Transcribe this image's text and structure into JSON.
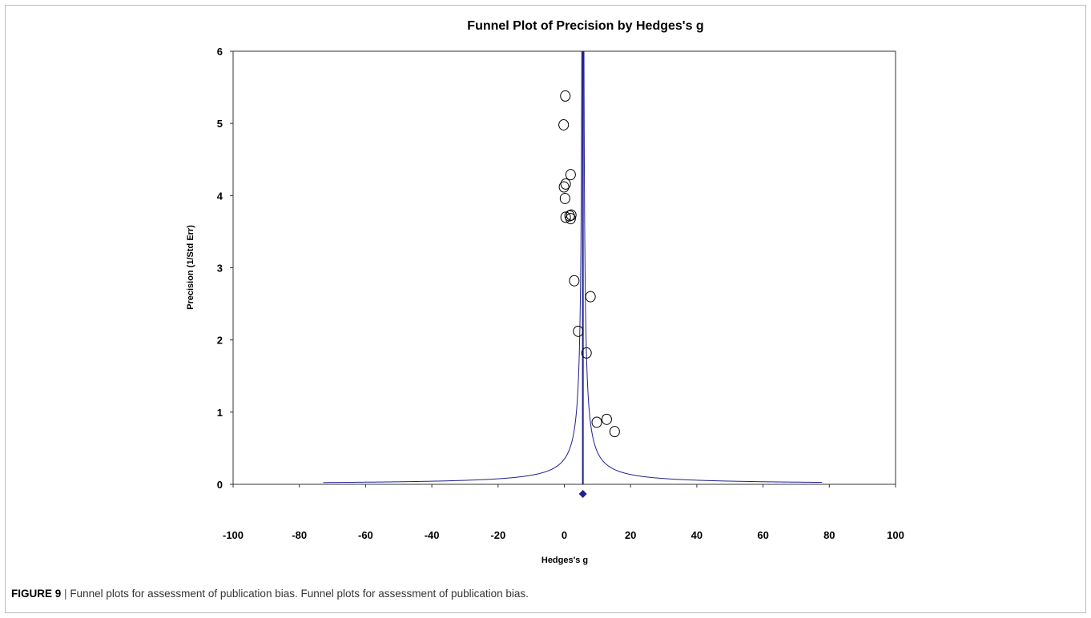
{
  "chart_data": {
    "type": "scatter",
    "title": "Funnel Plot of Precision by Hedges's g",
    "xlabel": "Hedges's g",
    "ylabel": "Precision (1/Std Err)",
    "xlim": [
      -100,
      100
    ],
    "ylim": [
      0,
      6
    ],
    "x_ticks": [
      "-100",
      "-80",
      "-60",
      "-40",
      "-20",
      "0",
      "20",
      "40",
      "60",
      "80",
      "100"
    ],
    "y_ticks": [
      "0",
      "1",
      "2",
      "3",
      "4",
      "5",
      "6"
    ],
    "grid": false,
    "legend": "none",
    "pooled_effect": 5.6,
    "funnel_line": {
      "center": 5.6,
      "half_width_factor": 1.96
    },
    "points": [
      {
        "x": 0.3,
        "y": 5.38
      },
      {
        "x": -0.2,
        "y": 4.98
      },
      {
        "x": 1.9,
        "y": 4.29
      },
      {
        "x": 0.4,
        "y": 4.16
      },
      {
        "x": -0.1,
        "y": 4.12
      },
      {
        "x": 0.2,
        "y": 3.96
      },
      {
        "x": 2.1,
        "y": 3.73
      },
      {
        "x": 1.6,
        "y": 3.72
      },
      {
        "x": 0.4,
        "y": 3.7
      },
      {
        "x": 1.9,
        "y": 3.68
      },
      {
        "x": 3.0,
        "y": 2.82
      },
      {
        "x": 7.9,
        "y": 2.6
      },
      {
        "x": 4.2,
        "y": 2.12
      },
      {
        "x": 6.7,
        "y": 1.82
      },
      {
        "x": 12.8,
        "y": 0.9
      },
      {
        "x": 9.8,
        "y": 0.86
      },
      {
        "x": 15.2,
        "y": 0.73
      }
    ],
    "colors": {
      "line": "#1f1f8f",
      "marker": "#000000",
      "diamond": "#1f1f8f"
    }
  },
  "caption": {
    "label": "FIGURE 9",
    "separator": "|",
    "text": "Funnel plots for assessment of publication bias. Funnel plots for assessment of publication bias."
  }
}
